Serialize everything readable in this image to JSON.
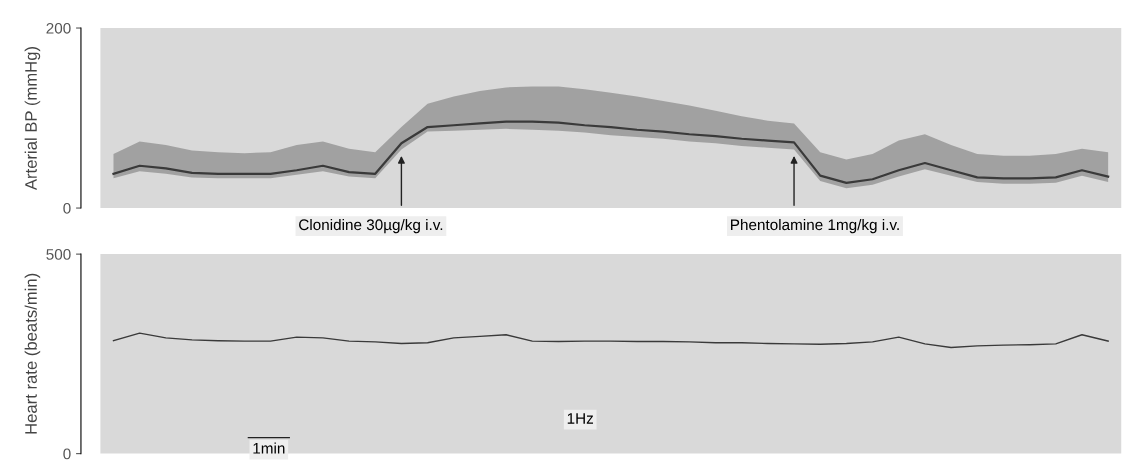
{
  "chart_data": [
    {
      "type": "line",
      "ylabel": "Arterial BP (mmHg)",
      "categories": [
        null,
        null,
        null,
        null,
        null,
        null,
        null,
        null,
        null,
        null,
        null,
        null,
        null,
        null,
        null,
        null,
        null,
        null,
        null,
        null,
        null,
        null,
        null,
        null,
        null,
        null,
        null,
        null,
        null,
        null,
        null,
        null,
        null,
        null,
        null,
        null,
        null,
        null,
        null
      ],
      "series": [
        {
          "color": "#3a3a3a",
          "values": [
            38,
            47,
            44,
            39,
            38,
            38,
            38,
            42,
            47,
            40,
            38,
            72,
            90,
            92,
            94,
            96,
            96,
            95,
            92,
            90,
            87,
            85,
            82,
            80,
            77,
            75,
            73,
            36,
            28,
            32,
            42,
            50,
            42,
            34,
            33,
            33,
            34,
            42,
            35
          ],
          "lower": [
            33,
            41,
            38,
            34,
            33,
            33,
            33,
            37,
            41,
            35,
            33,
            65,
            85,
            86,
            87,
            88,
            87,
            86,
            84,
            81,
            79,
            77,
            74,
            72,
            69,
            67,
            65,
            30,
            22,
            26,
            35,
            43,
            36,
            29,
            27,
            27,
            28,
            36,
            29
          ],
          "upper": [
            60,
            74,
            70,
            64,
            62,
            61,
            62,
            70,
            74,
            66,
            62,
            90,
            116,
            124,
            130,
            134,
            135,
            135,
            132,
            128,
            124,
            119,
            114,
            108,
            102,
            97,
            94,
            62,
            54,
            60,
            75,
            82,
            70,
            60,
            58,
            58,
            60,
            66,
            62
          ]
        }
      ],
      "ylim": [
        0,
        200
      ],
      "yticks": [
        0,
        200
      ],
      "grid": false,
      "tick_labels": "y",
      "annotations": [
        "Clonidine 30µg/kg i.v.",
        "Phentolamine 1mg/kg i.v."
      ]
    },
    {
      "type": "line",
      "ylabel": "Heart rate (beats/min)",
      "categories": [
        null,
        null,
        null,
        null,
        null,
        null,
        null,
        null,
        null,
        null,
        null,
        null,
        null,
        null,
        null,
        null,
        null,
        null,
        null,
        null,
        null,
        null,
        null,
        null,
        null,
        null,
        null,
        null,
        null,
        null,
        null,
        null,
        null,
        null,
        null,
        null,
        null,
        null,
        null
      ],
      "series": [
        {
          "color": "#3a3a3a",
          "values": [
            283,
            302,
            290,
            285,
            283,
            282,
            282,
            292,
            290,
            282,
            280,
            276,
            278,
            290,
            294,
            298,
            282,
            281,
            282,
            282,
            281,
            281,
            280,
            278,
            278,
            276,
            275,
            274,
            276,
            280,
            292,
            275,
            266,
            270,
            272,
            273,
            275,
            298,
            282
          ]
        }
      ],
      "ylim": [
        0,
        500
      ],
      "yticks": [
        0,
        500
      ],
      "grid": false,
      "tick_labels": "y",
      "annotations": [
        "1Hz",
        "1min"
      ]
    }
  ]
}
